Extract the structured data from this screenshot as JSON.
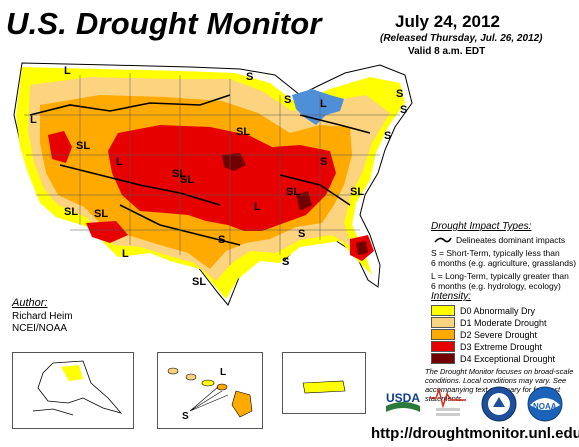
{
  "title": "U.S. Drought Monitor",
  "date": "July 24, 2012",
  "released": "(Released Thursday, Jul. 26, 2012)",
  "valid": "Valid 8 a.m. EDT",
  "author": {
    "heading": "Author:",
    "name": "Richard Heim",
    "org": "NCEI/NOAA"
  },
  "impact_types": {
    "heading": "Drought Impact Types:",
    "delineates": "Delineates dominant impacts",
    "s_line1": "S = Short-Term, typically less than",
    "s_line2": "6 months (e.g. agriculture, grasslands)",
    "l_line1": "L = Long-Term, typically greater than",
    "l_line2": "6 months (e.g. hydrology, ecology)"
  },
  "intensity": {
    "heading": "Intensity:",
    "items": [
      {
        "label": "D0 Abnormally Dry",
        "color": "#ffff00"
      },
      {
        "label": "D1 Moderate Drought",
        "color": "#fcd37f"
      },
      {
        "label": "D2 Severe Drought",
        "color": "#ffaa00"
      },
      {
        "label": "D3 Extreme Drought",
        "color": "#e60000"
      },
      {
        "label": "D4 Exceptional Drought",
        "color": "#730000"
      }
    ]
  },
  "note": "The Drought Monitor focuses on broad-scale conditions. Local conditions may vary. See accompanying text summary for forecast statements.",
  "url": "http://droughtmonitor.unl.edu/",
  "map_labels": [
    "L",
    "S",
    "S",
    "L",
    "SL",
    "SL",
    "SL",
    "SL",
    "S",
    "SL",
    "L",
    "SL",
    "L",
    "S",
    "S",
    "SL",
    "S",
    "L",
    "S",
    "L",
    "SL",
    "S",
    "SL",
    "S"
  ],
  "inset_labels": {
    "hawaii_s": "S",
    "hawaii_l": "L"
  },
  "logos": {
    "usda": "USDA",
    "ndmc": "National Drought Mitigation Center",
    "doc": "Department of Commerce",
    "noaa": "NOAA"
  },
  "colors": {
    "water": "#4f8fd8",
    "land_none": "#ffffff",
    "boundary": "#000000"
  }
}
